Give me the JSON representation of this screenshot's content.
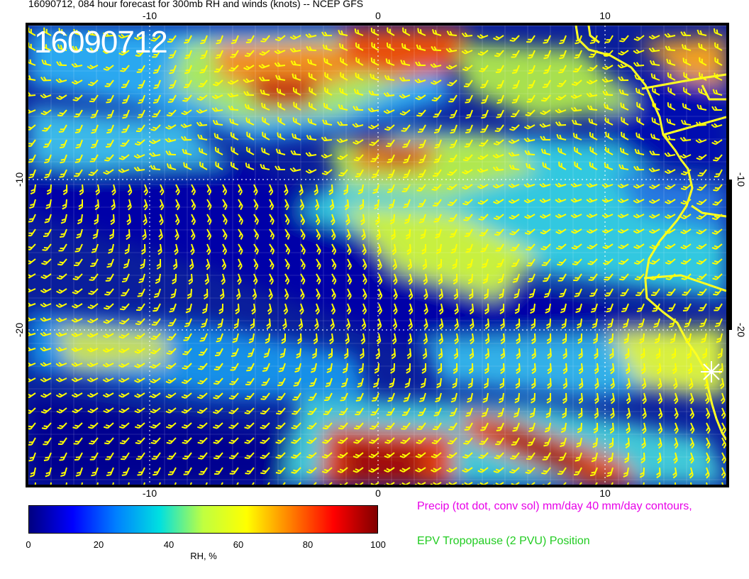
{
  "header": {
    "title": "16090712, 084 hour forecast for 300mb RH and winds (knots) -- NCEP GFS"
  },
  "map": {
    "timestamp_label": "16090712",
    "x_ticks": [
      "-10",
      "0",
      "10"
    ],
    "y_ticks": [
      "-10",
      "-20"
    ],
    "colors": {
      "background": "#0a1e9c",
      "coastline": "#ffff22",
      "wind_barbs": "#ffff00",
      "grid": "#ffffff",
      "marker": "#ffffff",
      "precip_contour": "#ff33ff"
    },
    "symbols": [
      "wind-barb-icon",
      "star-marker-icon"
    ]
  },
  "colorbar": {
    "label": "RH, %",
    "ticks": [
      "0",
      "20",
      "40",
      "60",
      "80",
      "100"
    ],
    "stops": [
      "#000080",
      "#0000ff",
      "#0080ff",
      "#00e0e0",
      "#c0ff40",
      "#ffff00",
      "#ff8000",
      "#ff0000",
      "#800000"
    ]
  },
  "legend": {
    "precip": "Precip (tot dot, conv sol) mm/day 40 mm/day contours,",
    "epv": "EPV Tropopause (2 PVU) Position"
  }
}
